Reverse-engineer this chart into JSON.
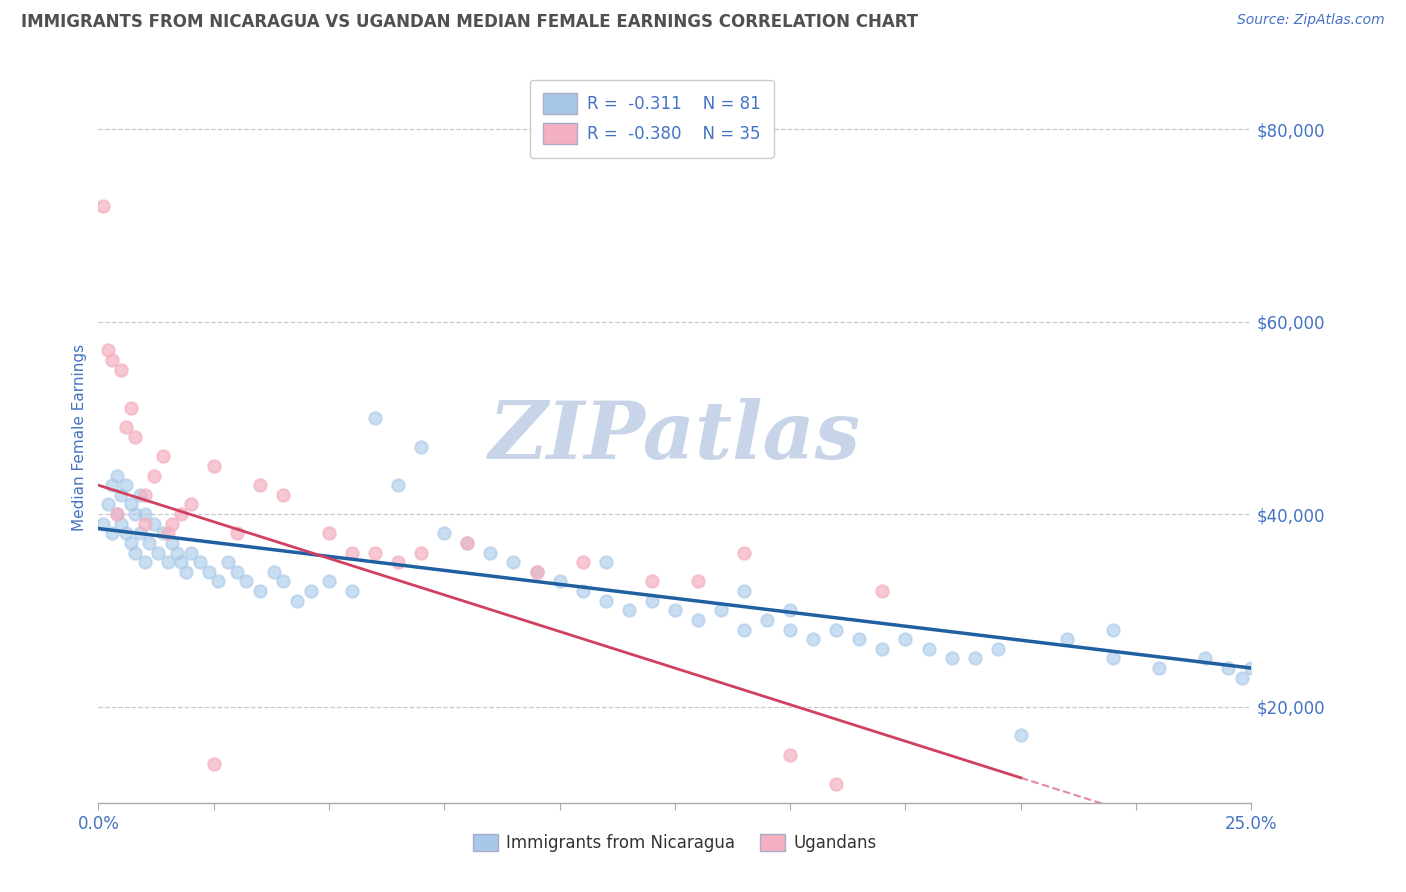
{
  "title": "IMMIGRANTS FROM NICARAGUA VS UGANDAN MEDIAN FEMALE EARNINGS CORRELATION CHART",
  "source": "Source: ZipAtlas.com",
  "label_blue": "Immigrants from Nicaragua",
  "label_pink": "Ugandans",
  "ylabel": "Median Female Earnings",
  "R_blue": -0.311,
  "N_blue": 81,
  "R_pink": -0.38,
  "N_pink": 35,
  "xlim": [
    0.0,
    0.25
  ],
  "ylim": [
    10000,
    86000
  ],
  "yticks": [
    20000,
    40000,
    60000,
    80000
  ],
  "xtick_positions": [
    0.0,
    0.025,
    0.05,
    0.075,
    0.1,
    0.125,
    0.15,
    0.175,
    0.2,
    0.225,
    0.25
  ],
  "xtick_labels_show": {
    "0.0": "0.0%",
    "0.25": "25.0%"
  },
  "ytick_labels": [
    "$20,000",
    "$40,000",
    "$60,000",
    "$80,000"
  ],
  "color_blue": "#a8c8e8",
  "color_pink": "#f4b0c0",
  "color_blue_line": "#2060a0",
  "color_pink_line": "#d04060",
  "background_color": "#ffffff",
  "grid_color": "#c8c8d8",
  "text_color": "#4472c4",
  "title_color": "#505050",
  "watermark_color": "#c8d4e8",
  "watermark": "ZIPatlas",
  "blue_x": [
    0.001,
    0.002,
    0.003,
    0.003,
    0.004,
    0.004,
    0.005,
    0.005,
    0.006,
    0.006,
    0.007,
    0.007,
    0.008,
    0.008,
    0.009,
    0.009,
    0.01,
    0.01,
    0.011,
    0.012,
    0.013,
    0.014,
    0.015,
    0.016,
    0.017,
    0.018,
    0.019,
    0.02,
    0.022,
    0.024,
    0.026,
    0.028,
    0.03,
    0.032,
    0.035,
    0.038,
    0.04,
    0.043,
    0.046,
    0.05,
    0.055,
    0.06,
    0.065,
    0.07,
    0.075,
    0.08,
    0.085,
    0.09,
    0.095,
    0.1,
    0.105,
    0.11,
    0.115,
    0.12,
    0.125,
    0.13,
    0.135,
    0.14,
    0.145,
    0.15,
    0.155,
    0.16,
    0.165,
    0.17,
    0.175,
    0.18,
    0.185,
    0.19,
    0.195,
    0.2,
    0.21,
    0.22,
    0.23,
    0.24,
    0.245,
    0.248,
    0.25,
    0.14,
    0.15,
    0.11,
    0.22
  ],
  "blue_y": [
    39000,
    41000,
    38000,
    43000,
    40000,
    44000,
    42000,
    39000,
    43000,
    38000,
    41000,
    37000,
    40000,
    36000,
    42000,
    38000,
    40000,
    35000,
    37000,
    39000,
    36000,
    38000,
    35000,
    37000,
    36000,
    35000,
    34000,
    36000,
    35000,
    34000,
    33000,
    35000,
    34000,
    33000,
    32000,
    34000,
    33000,
    31000,
    32000,
    33000,
    32000,
    50000,
    43000,
    47000,
    38000,
    37000,
    36000,
    35000,
    34000,
    33000,
    32000,
    31000,
    30000,
    31000,
    30000,
    29000,
    30000,
    28000,
    29000,
    28000,
    27000,
    28000,
    27000,
    26000,
    27000,
    26000,
    25000,
    25000,
    26000,
    17000,
    27000,
    25000,
    24000,
    25000,
    24000,
    23000,
    24000,
    32000,
    30000,
    35000,
    28000
  ],
  "pink_x": [
    0.001,
    0.002,
    0.003,
    0.004,
    0.005,
    0.006,
    0.007,
    0.008,
    0.01,
    0.012,
    0.014,
    0.016,
    0.018,
    0.02,
    0.025,
    0.03,
    0.035,
    0.04,
    0.05,
    0.055,
    0.065,
    0.07,
    0.08,
    0.095,
    0.105,
    0.12,
    0.13,
    0.14,
    0.15,
    0.16,
    0.17,
    0.01,
    0.015,
    0.025,
    0.06
  ],
  "pink_y": [
    72000,
    57000,
    56000,
    40000,
    55000,
    49000,
    51000,
    48000,
    42000,
    44000,
    46000,
    39000,
    40000,
    41000,
    45000,
    38000,
    43000,
    42000,
    38000,
    36000,
    35000,
    36000,
    37000,
    34000,
    35000,
    33000,
    33000,
    36000,
    15000,
    12000,
    32000,
    39000,
    38000,
    14000,
    36000
  ]
}
